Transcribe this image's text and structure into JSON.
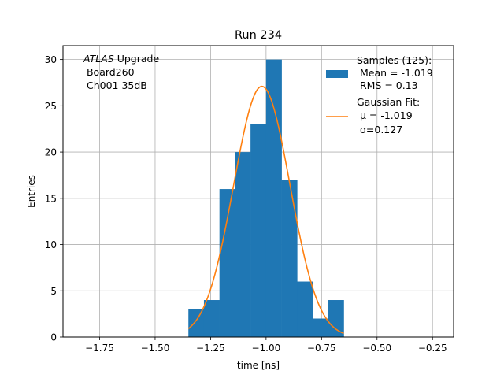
{
  "chart_data": {
    "type": "bar",
    "title": "Run 234",
    "xlabel": "time [ns]",
    "ylabel": "Entries",
    "xlim": [
      -1.915,
      -0.155
    ],
    "ylim": [
      0,
      31.5
    ],
    "xticks": [
      "−1.75",
      "−1.50",
      "−1.25",
      "−1.00",
      "−0.75",
      "−0.50",
      "−0.25"
    ],
    "xtick_values": [
      -1.75,
      -1.5,
      -1.25,
      -1.0,
      -0.75,
      -0.5,
      -0.25
    ],
    "yticks": [
      "0",
      "5",
      "10",
      "15",
      "20",
      "25",
      "30"
    ],
    "ytick_values": [
      0,
      5,
      10,
      15,
      20,
      25,
      30
    ],
    "grid": true,
    "legend_position": "top-right",
    "annotation": {
      "line1_italic": "ATLAS",
      "line1_rest": " Upgrade",
      "line2": " Board260",
      "line3": " Ch001 35dB"
    },
    "histogram": {
      "name_lines": [
        "Samples (125):",
        " Mean = -1.019",
        " RMS = 0.13"
      ],
      "color": "#1f77b4",
      "bin_edges": [
        -1.35,
        -1.28,
        -1.21,
        -1.14,
        -1.07,
        -1.0,
        -0.93,
        -0.86,
        -0.79,
        -0.72,
        -0.65
      ],
      "counts": [
        3,
        4,
        16,
        20,
        23,
        30,
        17,
        6,
        2,
        4
      ]
    },
    "fit": {
      "name_lines": [
        "Gaussian Fit:",
        " μ = -1.019",
        " σ=0.127"
      ],
      "color": "#ff7f0e",
      "mu": -1.019,
      "sigma": 0.127,
      "amplitude": 27.1,
      "x_range": [
        -1.35,
        -0.65
      ]
    }
  }
}
